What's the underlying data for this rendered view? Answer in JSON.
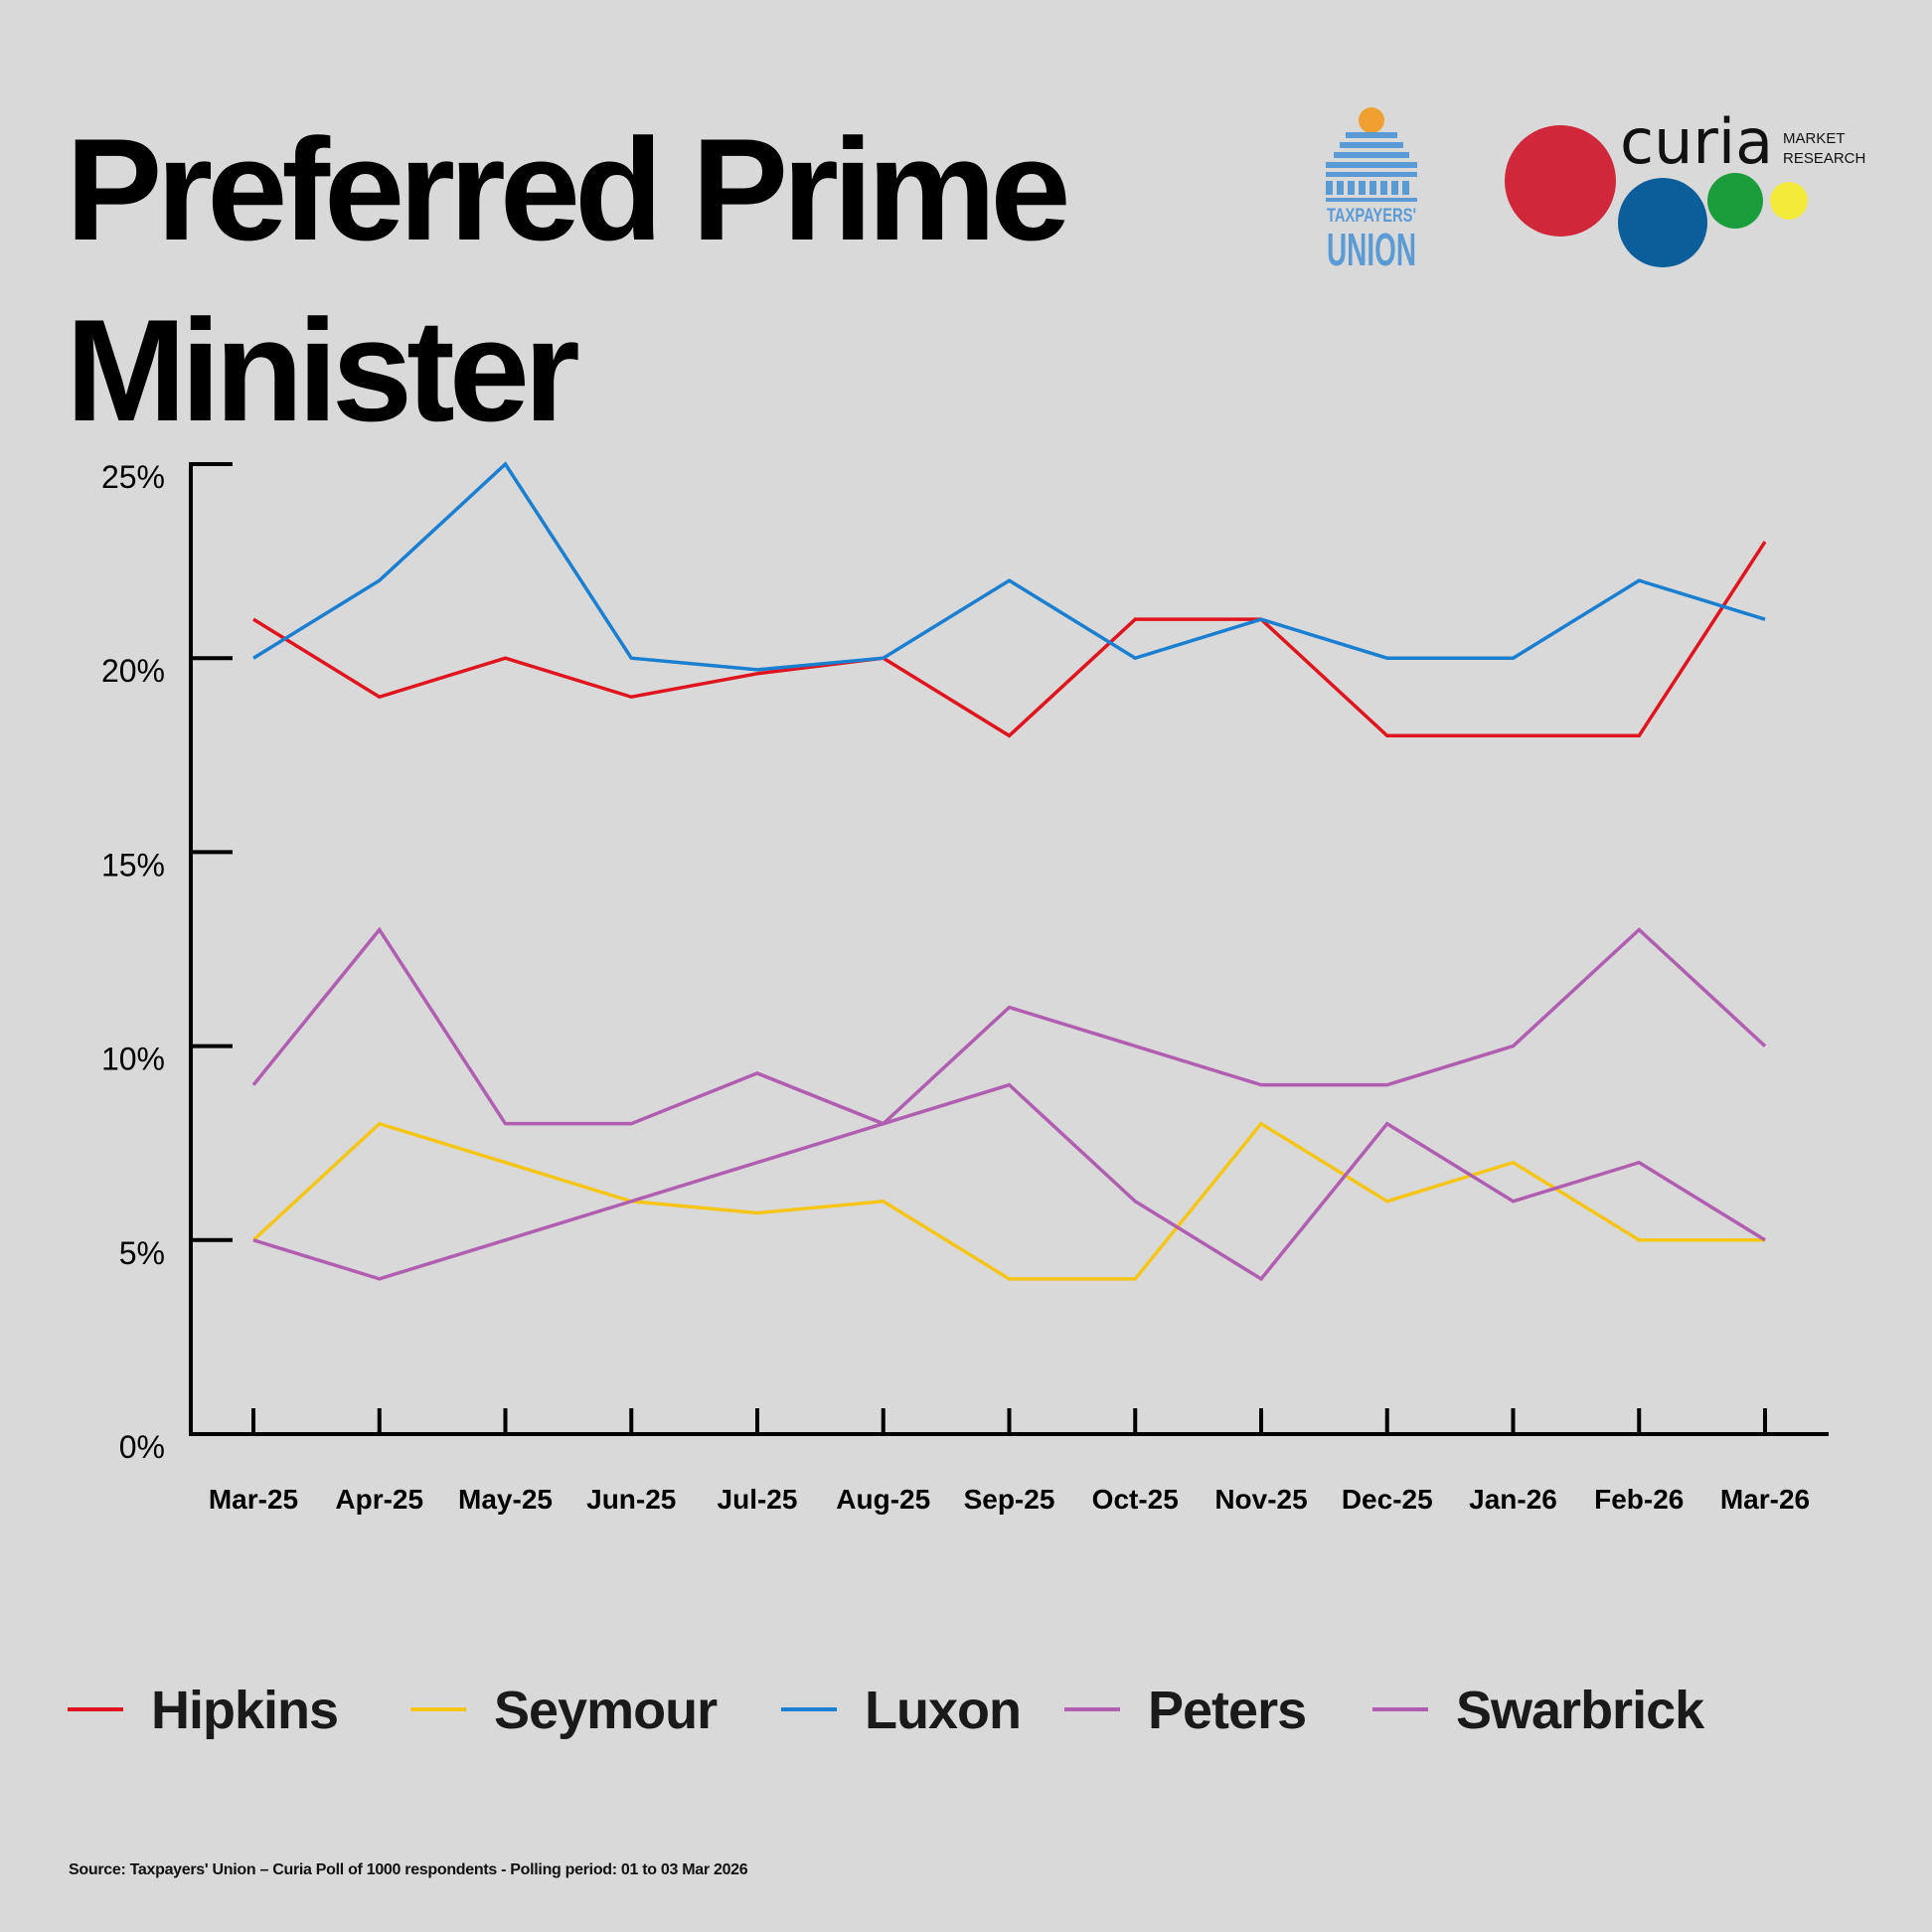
{
  "title": "Preferred Prime Minister",
  "logos": {
    "taxpayers_union": {
      "line1": "TAXPAYERS'",
      "line2": "UNION",
      "color": "#5b9bd5",
      "accent": "#f0a030"
    },
    "curia": {
      "name": "curia",
      "line1": "MARKET",
      "line2": "RESEARCH",
      "circle_colors": [
        "#d0283a",
        "#0b5e99",
        "#1a9e3c",
        "#f3ea3a"
      ]
    }
  },
  "chart_data": {
    "type": "line",
    "categories": [
      "Mar-25",
      "Apr-25",
      "May-25",
      "Jun-25",
      "Jul-25",
      "Aug-25",
      "Sep-25",
      "Oct-25",
      "Nov-25",
      "Dec-25",
      "Jan-26",
      "Feb-26",
      "Mar-26"
    ],
    "ylim": [
      0,
      25
    ],
    "yticks": [
      0,
      5,
      10,
      15,
      20,
      25
    ],
    "ytick_labels": [
      "0%",
      "5%",
      "10%",
      "15%",
      "20%",
      "25%"
    ],
    "grid": false,
    "legend_position": "bottom",
    "series": [
      {
        "name": "Hipkins",
        "color": "#e0141e",
        "values": [
          21,
          19,
          20,
          19,
          19.6,
          20,
          18,
          21,
          21,
          18,
          18,
          18,
          23
        ]
      },
      {
        "name": "Seymour",
        "color": "#f5c518",
        "values": [
          5,
          8,
          7,
          6,
          5.7,
          6,
          4,
          4,
          8,
          6,
          7,
          5,
          5
        ]
      },
      {
        "name": "Luxon",
        "color": "#1a7fd0",
        "values": [
          20,
          22,
          25,
          20,
          19.7,
          20,
          22,
          20,
          21,
          20,
          20,
          22,
          21
        ]
      },
      {
        "name": "Peters",
        "color": "#b05eb0",
        "values": [
          9,
          13,
          8,
          8,
          9.3,
          8,
          11,
          10,
          9,
          9,
          10,
          13,
          10
        ]
      },
      {
        "name": "Swarbrick",
        "color": "#b05eb0",
        "values": [
          5,
          4,
          5,
          6,
          7,
          8,
          9,
          6,
          4,
          8,
          6,
          7,
          5
        ]
      }
    ]
  },
  "source": "Source: Taxpayers' Union – Curia Poll of 1000 respondents - Polling period: 01 to 03 Mar 2026"
}
